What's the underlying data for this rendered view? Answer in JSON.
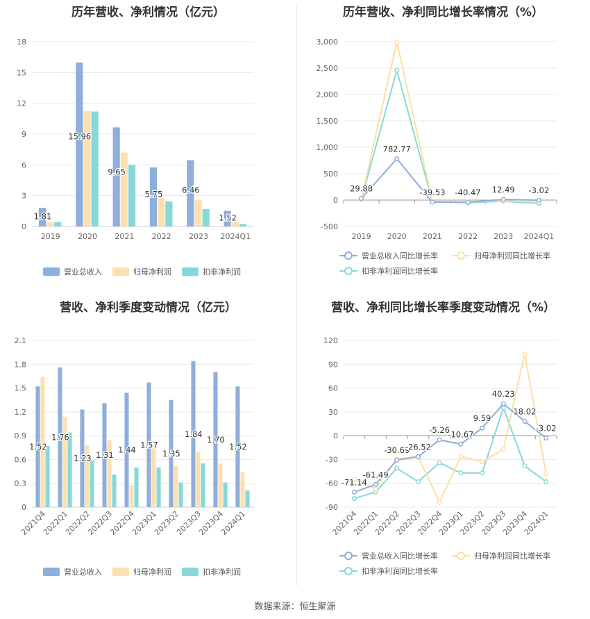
{
  "source": "数据来源：恒生聚源",
  "chart_data": [
    {
      "type": "bar",
      "title": "历年营收、净利情况（亿元）",
      "categories": [
        "2019",
        "2020",
        "2021",
        "2022",
        "2023",
        "2024Q1"
      ],
      "ylim": [
        0,
        18
      ],
      "yticks": [
        0,
        3,
        6,
        9,
        12,
        15,
        18
      ],
      "series": [
        {
          "name": "营业总收入",
          "color": "#8eaedb",
          "values": [
            1.81,
            15.96,
            9.65,
            5.75,
            6.46,
            1.52
          ],
          "labels": [
            "1.81",
            "15.96",
            "9.65",
            "5.75",
            "6.46",
            "1.52"
          ]
        },
        {
          "name": "归母净利润",
          "color": "#fde0b0",
          "values": [
            0.42,
            11.25,
            7.2,
            2.75,
            2.6,
            0.42
          ]
        },
        {
          "name": "扣非净利润",
          "color": "#88d8d8",
          "values": [
            0.45,
            11.2,
            6.0,
            2.45,
            1.7,
            0.25
          ]
        }
      ]
    },
    {
      "type": "line",
      "title": "历年营收、净利同比增长率情况（%）",
      "categories": [
        "2019",
        "2020",
        "2021",
        "2022",
        "2023",
        "2024Q1"
      ],
      "ylim": [
        -500,
        3000
      ],
      "yticks": [
        -500,
        0,
        500,
        1000,
        1500,
        2000,
        2500,
        3000
      ],
      "ytick_labels": [
        "-500",
        "0",
        "500",
        "1,000",
        "1,500",
        "2,000",
        "2,500",
        "3,000"
      ],
      "series": [
        {
          "name": "营业总收入同比增长率",
          "color": "#8eaedb",
          "values": [
            29.88,
            782.77,
            -39.53,
            -40.47,
            12.49,
            -3.02
          ],
          "labels": [
            "29.88",
            "782.77",
            "-39.53",
            "-40.47",
            "12.49",
            "-3.02"
          ]
        },
        {
          "name": "归母净利润同比增长率",
          "color": "#fde0a0",
          "values": [
            15,
            2995,
            -25,
            -35,
            -15,
            -35
          ]
        },
        {
          "name": "扣非净利润同比增长率",
          "color": "#88d8d8",
          "values": [
            20,
            2460,
            -30,
            -50,
            -25,
            -60
          ]
        }
      ]
    },
    {
      "type": "bar",
      "title": "营收、净利季度变动情况（亿元）",
      "categories": [
        "2021Q4",
        "2022Q1",
        "2022Q2",
        "2022Q3",
        "2022Q4",
        "2023Q1",
        "2023Q2",
        "2023Q3",
        "2023Q4",
        "2024Q1"
      ],
      "ylim": [
        0,
        2.1
      ],
      "yticks": [
        0,
        0.3,
        0.6,
        0.9,
        1.2,
        1.5,
        1.8,
        2.1
      ],
      "ytick_labels": [
        "0",
        "0.3",
        "0.6",
        "0.9",
        "1.2",
        "1.5",
        "1.8",
        "2.1"
      ],
      "series": [
        {
          "name": "营业总收入",
          "color": "#8eaedb",
          "values": [
            1.52,
            1.76,
            1.23,
            1.31,
            1.44,
            1.57,
            1.35,
            1.84,
            1.7,
            1.52
          ],
          "labels": [
            "1.52",
            "1.76",
            "1.23",
            "1.31",
            "1.44",
            "1.57",
            "1.35",
            "1.84",
            "1.70",
            "1.52"
          ]
        },
        {
          "name": "归母净利润",
          "color": "#fde0b0",
          "values": [
            1.64,
            1.14,
            0.78,
            0.84,
            0.28,
            0.76,
            0.52,
            0.7,
            0.55,
            0.44
          ]
        },
        {
          "name": "扣非净利润",
          "color": "#88d8d8",
          "values": [
            0.77,
            0.94,
            0.59,
            0.41,
            0.5,
            0.5,
            0.31,
            0.55,
            0.31,
            0.21
          ]
        }
      ]
    },
    {
      "type": "line",
      "title": "营收、净利同比增长率季度变动情况（%）",
      "categories": [
        "2021Q4",
        "2022Q1",
        "2022Q2",
        "2022Q3",
        "2022Q4",
        "2023Q1",
        "2023Q2",
        "2023Q3",
        "2023Q4",
        "2024Q1"
      ],
      "ylim": [
        -90,
        120
      ],
      "yticks": [
        -90,
        -60,
        -30,
        0,
        30,
        60,
        90,
        120
      ],
      "series": [
        {
          "name": "营业总收入同比增长率",
          "color": "#8eaedb",
          "values": [
            -71.14,
            -61.49,
            -30.69,
            -26.52,
            -5.26,
            -10.67,
            9.59,
            40.23,
            18.02,
            -3.02
          ],
          "labels": [
            "-71.14",
            "-61.49",
            "-30.69",
            "-26.52",
            "-5.26",
            "-10.67",
            "9.59",
            "40.23",
            "18.02",
            "-3.02"
          ]
        },
        {
          "name": "归母净利润同比增长率",
          "color": "#fde0a0",
          "values": [
            -55,
            -67,
            -29,
            -26,
            -84,
            -26,
            -33,
            -17,
            103,
            -48
          ]
        },
        {
          "name": "扣非净利润同比增长率",
          "color": "#88d8d8",
          "values": [
            -79,
            -71,
            -41,
            -58,
            -34,
            -47,
            -47,
            35,
            -38,
            -58
          ]
        }
      ]
    }
  ]
}
